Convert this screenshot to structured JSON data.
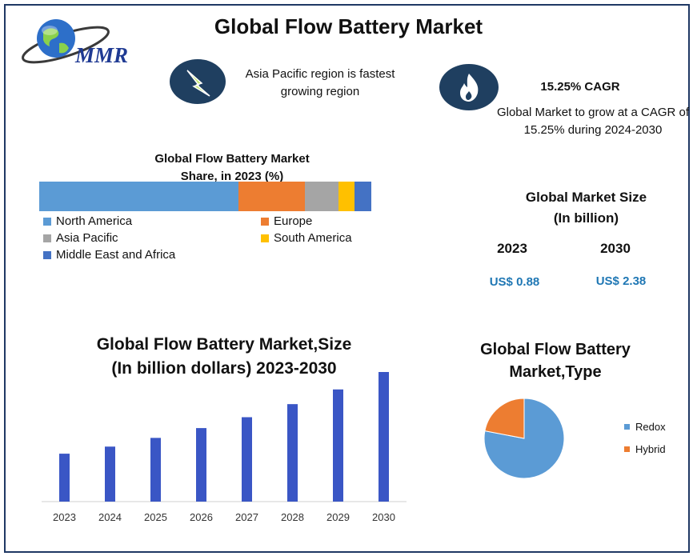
{
  "title": "Global Flow Battery Market",
  "logo_text": "MMR",
  "info_region": "Asia Pacific region is fastest growing region",
  "cagr": {
    "title": "15.25% CAGR",
    "description": "Global Market to grow at a CAGR of 15.25% during 2024-2030"
  },
  "market_size": {
    "title_line1": "Global Market Size",
    "title_line2": "(In billion)",
    "year_a": "2023",
    "year_b": "2030",
    "value_a": "US$ 0.88",
    "value_b": "US$ 2.38"
  },
  "colors": {
    "north_america": "#5b9bd5",
    "europe": "#ed7d31",
    "asia_pacific": "#a5a5a5",
    "south_america": "#ffc000",
    "mea": "#4472c4",
    "bar": "#3a56c5",
    "redox": "#5b9bd5",
    "hybrid": "#ed7d31",
    "icon_bg": "#1f3f60"
  },
  "icons": [
    "globe-icon",
    "lightning-icon",
    "flame-icon"
  ],
  "chart_data": [
    {
      "type": "bar",
      "orientation": "stacked-horizontal",
      "title_line1": "Global Flow Battery Market",
      "title_line2": "Share, in 2023 (%)",
      "categories": [
        "North America",
        "Europe",
        "Asia Pacific",
        "South America",
        "Middle East and Africa"
      ],
      "values": [
        60,
        20,
        10,
        5,
        5
      ],
      "xlim": [
        0,
        100
      ],
      "legend_placement": "bottom"
    },
    {
      "type": "bar",
      "title_line1": "Global Flow Battery Market,Size",
      "title_line2": "(In billion dollars) 2023-2030",
      "categories": [
        "2023",
        "2024",
        "2025",
        "2026",
        "2027",
        "2028",
        "2029",
        "2030"
      ],
      "values": [
        0.88,
        1.01,
        1.17,
        1.35,
        1.55,
        1.79,
        2.06,
        2.38
      ],
      "ylim": [
        0,
        2.38
      ],
      "grid": false
    },
    {
      "type": "pie",
      "title_line1": "Global Flow Battery",
      "title_line2": "Market,Type",
      "labels": [
        "Redox",
        "Hybrid"
      ],
      "values": [
        78,
        22
      ],
      "legend_placement": "right"
    }
  ]
}
